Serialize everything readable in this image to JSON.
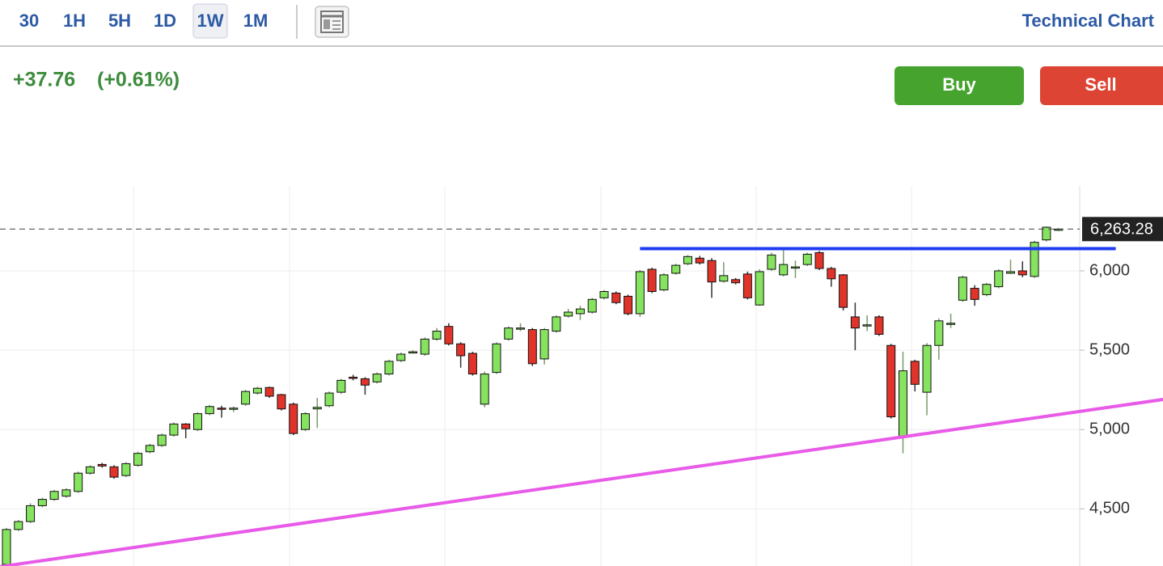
{
  "toolbar": {
    "intervals": [
      "30",
      "1H",
      "5H",
      "1D",
      "1W",
      "1M"
    ],
    "active": "1W",
    "title": "Technical Chart"
  },
  "quote": {
    "change": "+37.76",
    "change_percent": "(+0.61%)"
  },
  "actions": {
    "buy": "Buy",
    "sell": "Sell"
  },
  "chart_data": {
    "type": "candlestick",
    "open": [
      4150,
      4370,
      4420,
      4520,
      4560,
      4580,
      4610,
      4725,
      4780,
      4765,
      4710,
      4775,
      4860,
      4900,
      4965,
      5035,
      5000,
      5100,
      5135,
      5130,
      5160,
      5230,
      5265,
      5220,
      5160,
      5000,
      5130,
      5150,
      5235,
      5330,
      5320,
      5300,
      5350,
      5435,
      5485,
      5475,
      5570,
      5650,
      5540,
      5480,
      5160,
      5360,
      5570,
      5635,
      5630,
      5445,
      5620,
      5715,
      5730,
      5740,
      5830,
      5860,
      5840,
      5730,
      6010,
      5880,
      5985,
      6045,
      6080,
      6065,
      5935,
      5945,
      5980,
      5785,
      6010,
      5975,
      6020,
      6040,
      6115,
      6015,
      5975,
      5710,
      5655,
      5710,
      5530,
      4955,
      5430,
      5235,
      5530,
      5665,
      5815,
      5890,
      5850,
      5900,
      5985,
      6000,
      5965,
      6195,
      6260
    ],
    "high": [
      4380,
      4430,
      4535,
      4570,
      4620,
      4630,
      4735,
      4775,
      4790,
      4775,
      4795,
      4860,
      4910,
      4975,
      5045,
      5040,
      5110,
      5155,
      5150,
      5145,
      5250,
      5270,
      5270,
      5225,
      5170,
      5110,
      5200,
      5240,
      5320,
      5345,
      5330,
      5360,
      5440,
      5485,
      5500,
      5580,
      5640,
      5670,
      5550,
      5490,
      5365,
      5550,
      5650,
      5670,
      5640,
      5640,
      5720,
      5760,
      5780,
      5830,
      5880,
      5870,
      5850,
      6005,
      6020,
      5985,
      6045,
      6100,
      6095,
      6080,
      6055,
      5955,
      5995,
      6010,
      6115,
      6130,
      6065,
      6115,
      6125,
      6025,
      5980,
      5800,
      5720,
      5720,
      5540,
      5490,
      5440,
      5545,
      5700,
      5730,
      5970,
      5910,
      5925,
      6010,
      6070,
      6060,
      6190,
      6280,
      6270
    ],
    "low": [
      4140,
      4360,
      4410,
      4510,
      4550,
      4570,
      4600,
      4715,
      4760,
      4690,
      4700,
      4765,
      4850,
      4890,
      4955,
      4945,
      4990,
      5090,
      5075,
      5110,
      5150,
      5220,
      5200,
      5120,
      4965,
      4990,
      5010,
      5140,
      5225,
      5310,
      5220,
      5290,
      5340,
      5425,
      5480,
      5465,
      5560,
      5530,
      5390,
      5340,
      5140,
      5350,
      5560,
      5620,
      5400,
      5410,
      5610,
      5705,
      5690,
      5730,
      5820,
      5790,
      5720,
      5710,
      5860,
      5870,
      5975,
      6035,
      6040,
      5830,
      5925,
      5915,
      5820,
      5780,
      6000,
      5965,
      5955,
      6030,
      6005,
      5900,
      5750,
      5500,
      5620,
      5590,
      5070,
      4850,
      5240,
      5090,
      5440,
      5640,
      5805,
      5780,
      5840,
      5890,
      5980,
      5960,
      5955,
      6185,
      6250
    ],
    "close": [
      4370,
      4420,
      4520,
      4560,
      4610,
      4620,
      4725,
      4765,
      4770,
      4700,
      4785,
      4850,
      4900,
      4965,
      5035,
      5005,
      5100,
      5145,
      5130,
      5135,
      5240,
      5260,
      5210,
      5130,
      4975,
      5100,
      5140,
      5230,
      5310,
      5325,
      5280,
      5350,
      5430,
      5475,
      5490,
      5570,
      5620,
      5540,
      5465,
      5350,
      5350,
      5540,
      5640,
      5640,
      5415,
      5630,
      5710,
      5740,
      5760,
      5820,
      5870,
      5800,
      5730,
      5995,
      5870,
      5975,
      6035,
      6090,
      6050,
      5930,
      5970,
      5925,
      5830,
      5995,
      6100,
      6040,
      6025,
      6105,
      6015,
      5950,
      5770,
      5640,
      5660,
      5600,
      5080,
      5370,
      5285,
      5530,
      5685,
      5670,
      5960,
      5820,
      5915,
      6000,
      5995,
      5975,
      6180,
      6275,
      6263.28
    ],
    "up_color": "#86e35f",
    "down_color": "#e0332a",
    "ylim": [
      4140,
      6535
    ],
    "yticks": [
      {
        "value": 4500,
        "label": "4,500"
      },
      {
        "value": 5000,
        "label": "5,000"
      },
      {
        "value": 5500,
        "label": "5,500"
      },
      {
        "value": 6000,
        "label": "6,000"
      }
    ],
    "grid": true,
    "last_price": {
      "value": 6263.28,
      "label": "6,263.28"
    },
    "lines": [
      {
        "color": "#1f3df0",
        "x": [
          53.0,
          92.8
        ],
        "y": [
          6140,
          6140
        ]
      },
      {
        "color": "#e85ae8",
        "x": [
          -0.6,
          96.8
        ],
        "y": [
          4135,
          5190
        ]
      }
    ]
  }
}
